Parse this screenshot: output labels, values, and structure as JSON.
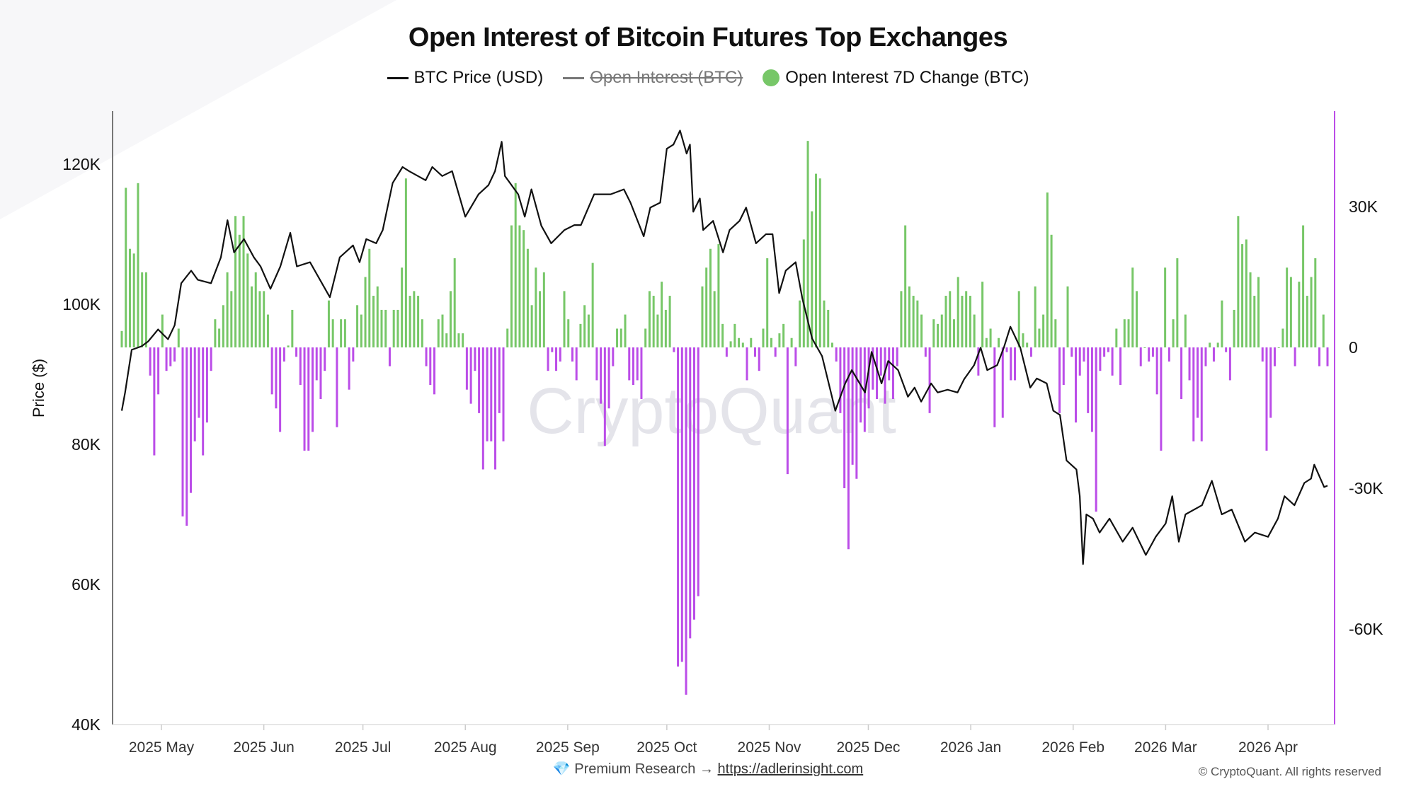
{
  "chart_data": {
    "type": "bar+line",
    "title": "Open Interest of Bitcoin Futures Top Exchanges",
    "legend": [
      {
        "label": "BTC Price (USD)",
        "color": "#111111",
        "hidden": false
      },
      {
        "label": "Open Interest (BTC)",
        "color": "#777777",
        "hidden": true
      },
      {
        "label": "Open Interest 7D Change (BTC)",
        "color": "#77c768",
        "hidden": false
      }
    ],
    "legend_position": "top-center",
    "ylabel": "Price ($)",
    "y_left": {
      "range": [
        40000,
        125000
      ],
      "ticks": [
        40000,
        60000,
        80000,
        100000,
        120000
      ],
      "tick_labels": [
        "40K",
        "60K",
        "80K",
        "100K",
        "120K"
      ]
    },
    "y_right": {
      "range": [
        -80000,
        50000
      ],
      "ticks": [
        -60000,
        -30000,
        0,
        30000
      ],
      "tick_labels": [
        "-60K",
        "-30K",
        "0",
        "30K"
      ]
    },
    "x_unit": "days since 2025-04-19",
    "x_range": [
      0,
      365
    ],
    "x_ticks": [
      12,
      43,
      73,
      104,
      135,
      165,
      196,
      226,
      257,
      288,
      316,
      347
    ],
    "x_tick_labels": [
      "2025 May",
      "2025 Jun",
      "2025 Jul",
      "2025 Aug",
      "2025 Sep",
      "2025 Oct",
      "2025 Nov",
      "2025 Dec",
      "2026 Jan",
      "2026 Feb",
      "2026 Mar",
      "2026 Apr"
    ],
    "positive_color": "#77c768",
    "negative_color": "#bb4de8",
    "btc_price": [
      [
        0,
        84.8
      ],
      [
        1,
        87.4
      ],
      [
        3,
        93.5
      ],
      [
        6,
        94
      ],
      [
        8,
        94.7
      ],
      [
        11,
        96.4
      ],
      [
        14,
        95
      ],
      [
        16,
        97
      ],
      [
        18,
        103
      ],
      [
        21,
        104.8
      ],
      [
        23,
        103.5
      ],
      [
        27,
        103
      ],
      [
        30,
        106.7
      ],
      [
        32,
        112
      ],
      [
        34,
        107.4
      ],
      [
        37,
        109.3
      ],
      [
        40,
        106.7
      ],
      [
        42,
        105.4
      ],
      [
        45,
        102.2
      ],
      [
        48,
        105.4
      ],
      [
        51,
        110.2
      ],
      [
        53,
        105.4
      ],
      [
        57,
        106
      ],
      [
        63,
        101
      ],
      [
        66,
        106.7
      ],
      [
        70,
        108.4
      ],
      [
        72,
        106
      ],
      [
        74,
        109.3
      ],
      [
        77,
        108.7
      ],
      [
        79,
        110.6
      ],
      [
        82,
        117.3
      ],
      [
        85,
        119.6
      ],
      [
        87,
        119
      ],
      [
        92,
        117.7
      ],
      [
        94,
        119.6
      ],
      [
        97,
        118.3
      ],
      [
        100,
        119
      ],
      [
        104,
        112.5
      ],
      [
        108,
        115.7
      ],
      [
        111,
        117
      ],
      [
        113,
        119
      ],
      [
        115,
        123.2
      ],
      [
        116,
        118.3
      ],
      [
        120,
        115.7
      ],
      [
        122,
        112.5
      ],
      [
        124,
        116.4
      ],
      [
        127,
        111.2
      ],
      [
        130,
        108.7
      ],
      [
        134,
        110.6
      ],
      [
        137,
        111.3
      ],
      [
        139,
        111.3
      ],
      [
        143,
        115.7
      ],
      [
        148,
        115.7
      ],
      [
        152,
        116.4
      ],
      [
        154,
        114.5
      ],
      [
        158,
        109.7
      ],
      [
        160,
        113.8
      ],
      [
        163,
        114.5
      ],
      [
        165,
        122.2
      ],
      [
        167,
        122.8
      ],
      [
        169,
        124.8
      ],
      [
        171,
        121.5
      ],
      [
        172,
        122.8
      ],
      [
        173,
        113.2
      ],
      [
        175,
        115.1
      ],
      [
        176,
        110.6
      ],
      [
        179,
        111.9
      ],
      [
        182,
        107.4
      ],
      [
        184,
        110.6
      ],
      [
        187,
        111.9
      ],
      [
        189,
        113.8
      ],
      [
        192,
        108.7
      ],
      [
        195,
        110
      ],
      [
        197,
        110
      ],
      [
        199,
        101.6
      ],
      [
        201,
        104.8
      ],
      [
        204,
        106
      ],
      [
        206,
        100.9
      ],
      [
        209,
        95.1
      ],
      [
        212,
        92.6
      ],
      [
        215,
        86.8
      ],
      [
        216,
        84.8
      ],
      [
        219,
        88.7
      ],
      [
        221,
        90.6
      ],
      [
        225,
        87.4
      ],
      [
        227,
        93.2
      ],
      [
        230,
        88.7
      ],
      [
        232,
        91.9
      ],
      [
        235,
        90.6
      ],
      [
        238,
        86.8
      ],
      [
        240,
        88.1
      ],
      [
        242,
        86.1
      ],
      [
        245,
        88.7
      ],
      [
        247,
        87.4
      ],
      [
        250,
        87.8
      ],
      [
        253,
        87.4
      ],
      [
        255,
        89.3
      ],
      [
        258,
        91.3
      ],
      [
        260,
        93.8
      ],
      [
        262,
        90.6
      ],
      [
        265,
        91.3
      ],
      [
        267,
        93.8
      ],
      [
        269,
        96.8
      ],
      [
        272,
        93.8
      ],
      [
        275,
        88.1
      ],
      [
        277,
        89.4
      ],
      [
        280,
        88.7
      ],
      [
        282,
        84.8
      ],
      [
        284,
        84.2
      ],
      [
        286,
        77.7
      ],
      [
        289,
        76.4
      ],
      [
        290,
        72.6
      ],
      [
        291,
        62.9
      ],
      [
        292,
        70
      ],
      [
        294,
        69.4
      ],
      [
        296,
        67.4
      ],
      [
        299,
        69.4
      ],
      [
        303,
        66.1
      ],
      [
        306,
        68.1
      ],
      [
        310,
        64.2
      ],
      [
        313,
        66.8
      ],
      [
        316,
        68.7
      ],
      [
        318,
        72.6
      ],
      [
        320,
        66.1
      ],
      [
        322,
        70
      ],
      [
        327,
        71.3
      ],
      [
        330,
        74.8
      ],
      [
        333,
        70
      ],
      [
        336,
        70.7
      ],
      [
        340,
        66.1
      ],
      [
        343,
        67.4
      ],
      [
        347,
        66.8
      ],
      [
        350,
        69.4
      ],
      [
        352,
        72.6
      ],
      [
        355,
        71.3
      ],
      [
        358,
        74.5
      ],
      [
        360,
        75.1
      ],
      [
        361,
        77.1
      ],
      [
        364,
        73.9
      ],
      [
        365,
        74.1
      ]
    ],
    "btc_price_unit": "thousand USD",
    "oi_7d_change_unit": "thousand BTC",
    "oi_7d_change": [
      3.5,
      34,
      21,
      20,
      35,
      16,
      16,
      -6,
      -23,
      -10,
      7,
      -5,
      -4,
      -3,
      4,
      -36,
      -38,
      -31,
      -20,
      -15,
      -23,
      -16,
      -5,
      6,
      4,
      9,
      16,
      12,
      28,
      24,
      28,
      20,
      13,
      16,
      12,
      12,
      7,
      -10,
      -13,
      -18,
      -3,
      0.4,
      8,
      -2,
      -8,
      -22,
      -22,
      -18,
      -7,
      -11,
      -5,
      10,
      6,
      -17,
      6,
      6,
      -9,
      -3,
      9,
      7,
      15,
      21,
      11,
      13,
      8,
      8,
      -4,
      8,
      8,
      17,
      36,
      11,
      12,
      11,
      6,
      -4,
      -8,
      -10,
      6,
      7,
      3,
      12,
      19,
      3,
      3,
      -9,
      -12,
      -5,
      -14,
      -26,
      -20,
      -20,
      -26,
      -14,
      -20,
      4,
      26,
      35,
      26,
      25,
      21,
      9,
      17,
      12,
      16,
      -5,
      -1,
      -5,
      -3,
      12,
      6,
      -3,
      -7,
      5,
      9,
      7,
      18,
      -7,
      -12,
      -21,
      -13,
      -4,
      4,
      4,
      7,
      -7,
      -8,
      -7,
      -11,
      4,
      12,
      11,
      7,
      14,
      8,
      11,
      -1,
      -68,
      -67,
      -74,
      -62,
      -58,
      -53,
      13,
      17,
      21,
      12,
      22,
      5,
      -2,
      1.3,
      5,
      2,
      1,
      -7,
      2,
      -2,
      -5,
      4,
      19,
      2,
      -2,
      3,
      5,
      -27,
      2,
      -4,
      10,
      23,
      44,
      29,
      37,
      36,
      10,
      8,
      1,
      -3,
      -14,
      -30,
      -43,
      -25,
      -28,
      -16,
      -18,
      -13,
      -9,
      -11,
      -6,
      -12,
      -7,
      -11,
      -4,
      12,
      26,
      13,
      11,
      10,
      7,
      -2,
      -14,
      6,
      5,
      7,
      11,
      12,
      6,
      15,
      11,
      12,
      11,
      7,
      -6,
      14,
      2,
      4,
      -17,
      2,
      -15,
      -1,
      -7,
      -7,
      12,
      3,
      1,
      -2,
      13,
      4,
      7,
      33,
      24,
      6,
      -14,
      -8,
      13,
      -2,
      -16,
      -6,
      -3,
      -14,
      -18,
      -35,
      -5,
      -2,
      -1,
      -6,
      4,
      -8,
      6,
      6,
      17,
      12,
      -4,
      0,
      -3,
      -2,
      -10,
      -22,
      17,
      -3,
      6,
      19,
      -11,
      7,
      -7,
      -20,
      -15,
      -20,
      -4,
      1,
      -3,
      1,
      10,
      -1,
      -7,
      8,
      28,
      22,
      23,
      16,
      11,
      15,
      -3,
      -22,
      -15,
      -4,
      0,
      4,
      17,
      15,
      -4,
      14,
      26,
      11,
      15,
      19,
      -4,
      7,
      -4
    ]
  },
  "watermark": "CryptoQuant",
  "footer": {
    "premium_text": "Premium Research →",
    "link": "https://adlerinsight.com",
    "copyright": "© CryptoQuant. All rights reserved"
  }
}
